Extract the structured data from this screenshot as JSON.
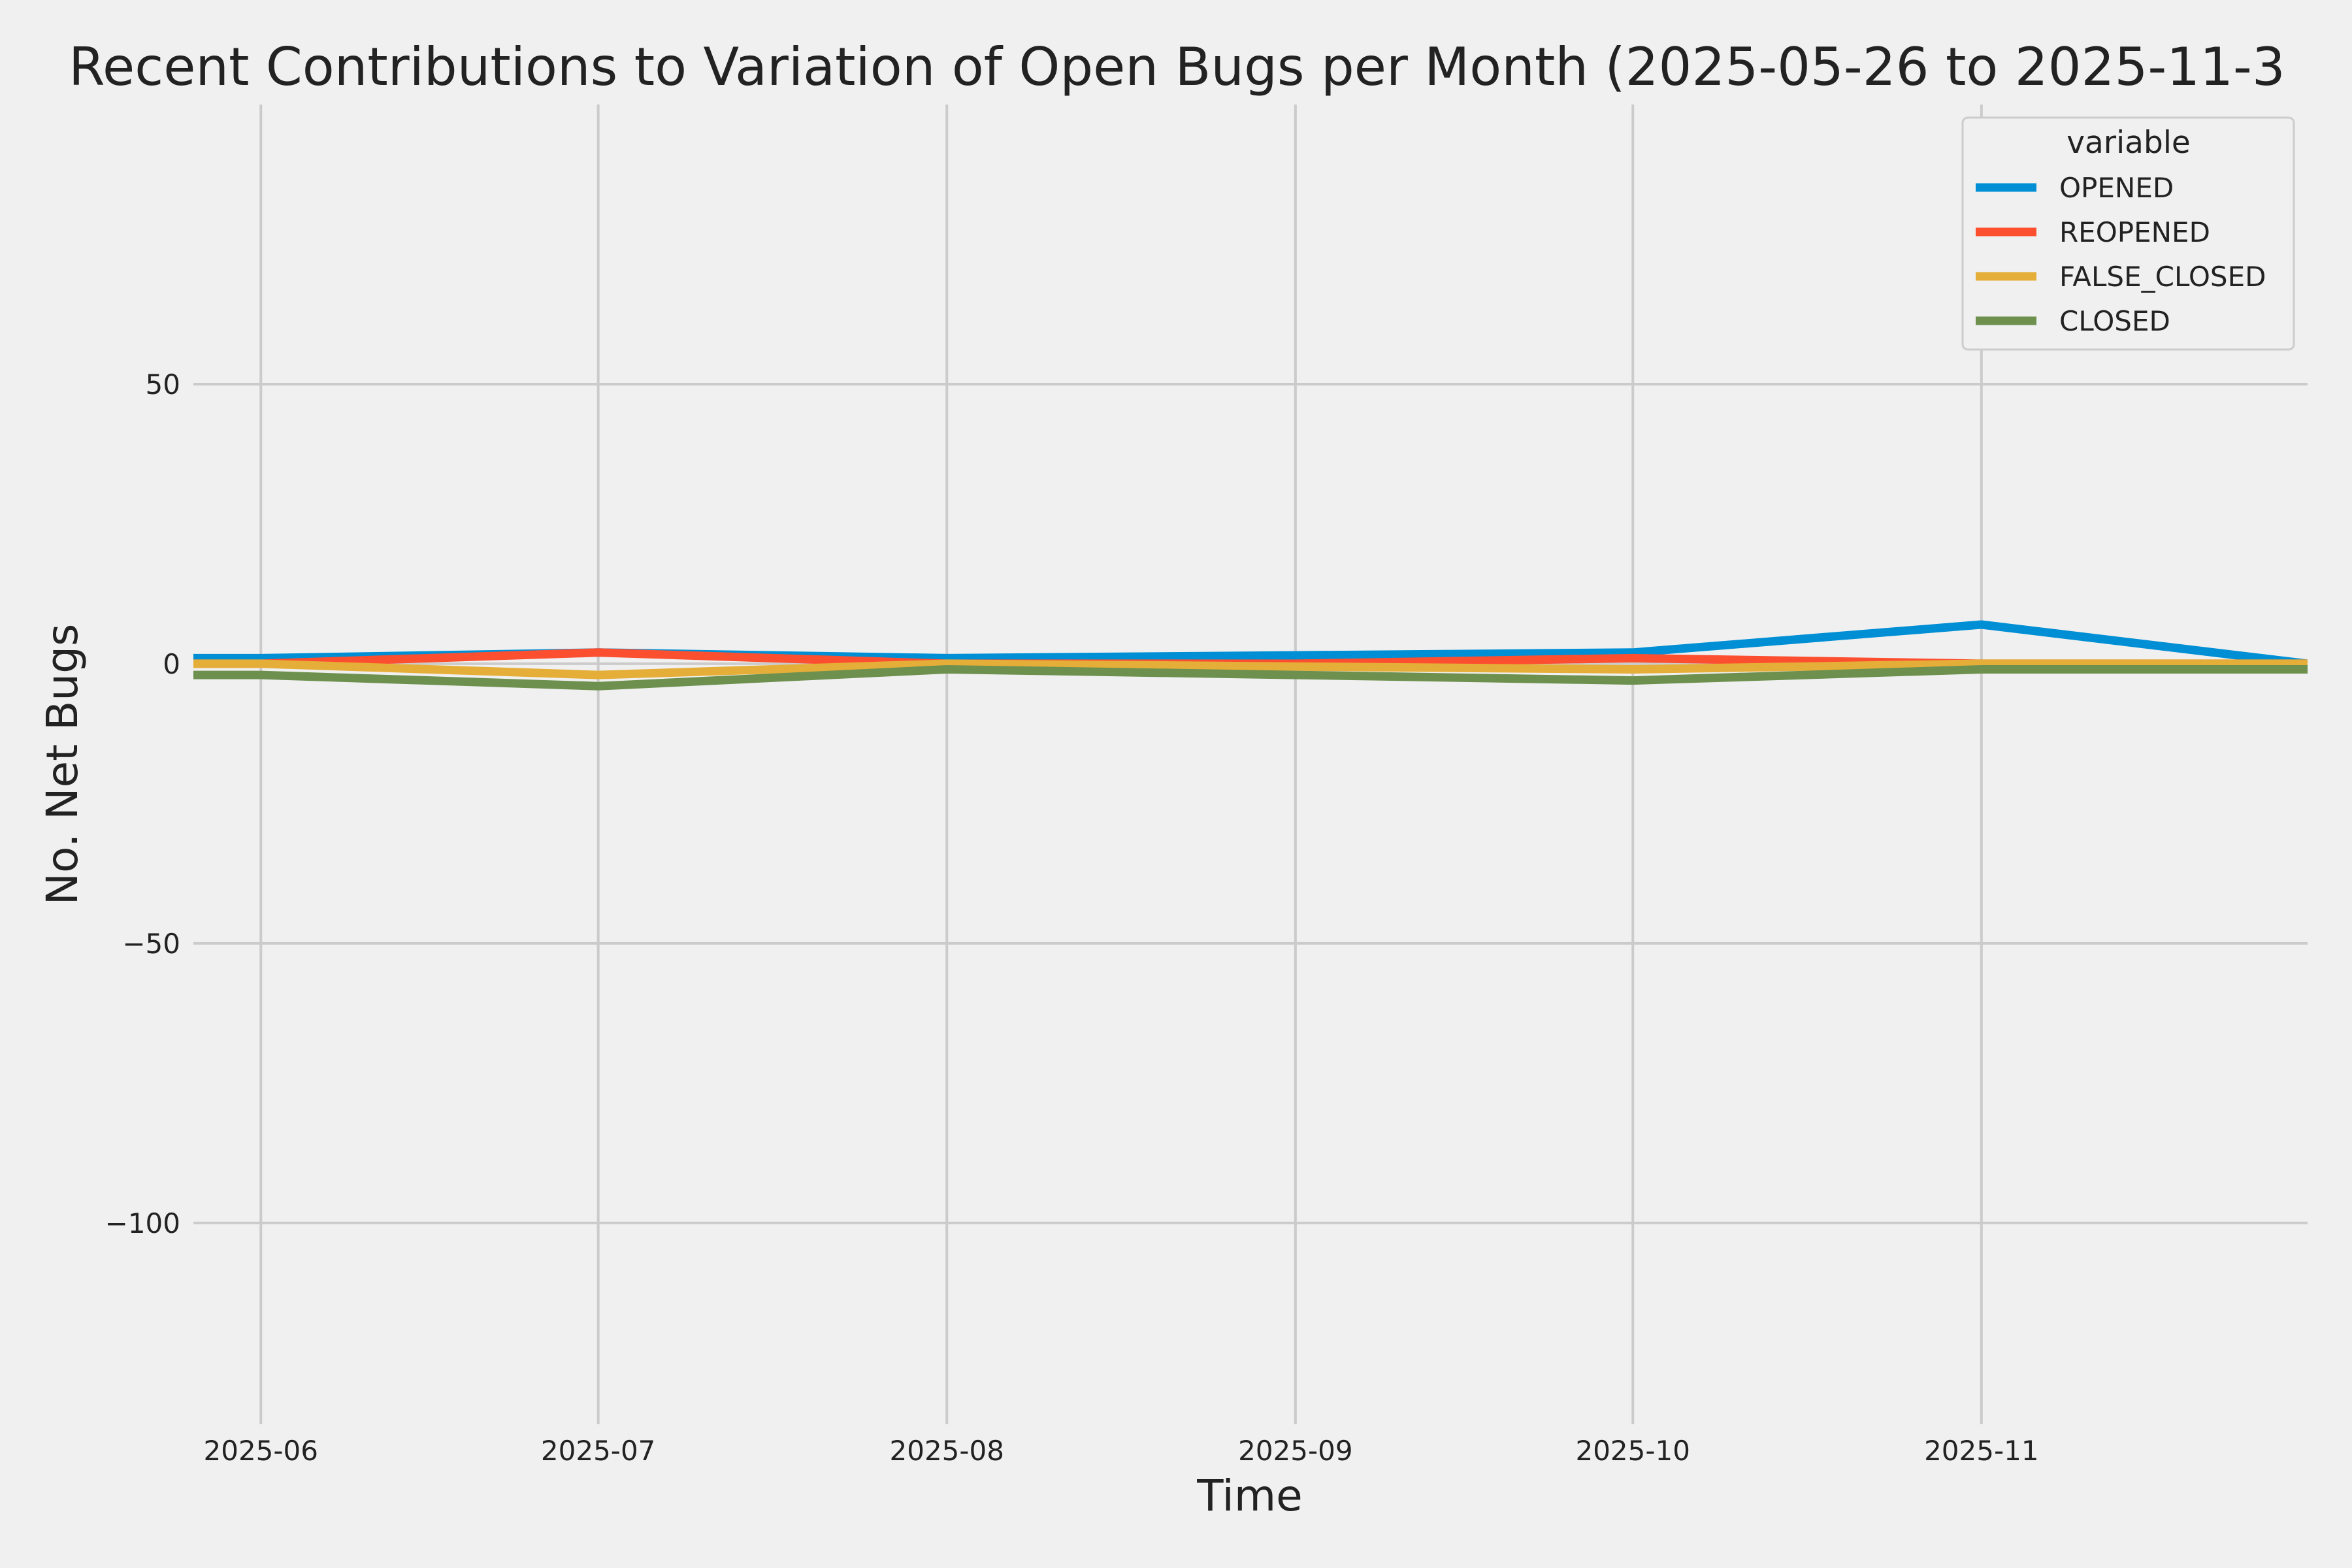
{
  "chart_data": {
    "type": "line",
    "title": "Recent Contributions to Variation of Open Bugs per Month (2025-05-26 to 2025-11-3",
    "xlabel": "Time",
    "ylabel": "No. Net Bugs",
    "x": [
      "2025-05-26",
      "2025-06-01",
      "2025-07-01",
      "2025-08-01",
      "2025-09-01",
      "2025-10-01",
      "2025-11-01",
      "2025-11-30"
    ],
    "x_ticks": [
      "2025-06",
      "2025-07",
      "2025-08",
      "2025-09",
      "2025-10",
      "2025-11"
    ],
    "x_tick_dates": [
      "2025-06-01",
      "2025-07-01",
      "2025-08-01",
      "2025-09-01",
      "2025-10-01",
      "2025-11-01"
    ],
    "xlim": [
      "2025-05-26",
      "2025-11-30"
    ],
    "y_ticks": [
      "50",
      "0",
      "−50",
      "−100"
    ],
    "y_tick_values": [
      50,
      0,
      -50,
      -100
    ],
    "ylim": [
      -136,
      100
    ],
    "grid": true,
    "legend_title": "variable",
    "legend_position": "top-right",
    "series": [
      {
        "name": "OPENED",
        "color": "#008fd5",
        "values": [
          1,
          1,
          2,
          1,
          1.5,
          2,
          7,
          0
        ]
      },
      {
        "name": "REOPENED",
        "color": "#fc4f30",
        "values": [
          0,
          0,
          2,
          0,
          0,
          1,
          0,
          0
        ]
      },
      {
        "name": "FALSE_CLOSED",
        "color": "#e5ae38",
        "values": [
          0,
          0,
          -2,
          0,
          -0.5,
          -1,
          0,
          0
        ]
      },
      {
        "name": "CLOSED",
        "color": "#6d904f",
        "values": [
          -2,
          -2,
          -4,
          -1,
          -2,
          -3,
          -1,
          -1
        ]
      }
    ]
  }
}
